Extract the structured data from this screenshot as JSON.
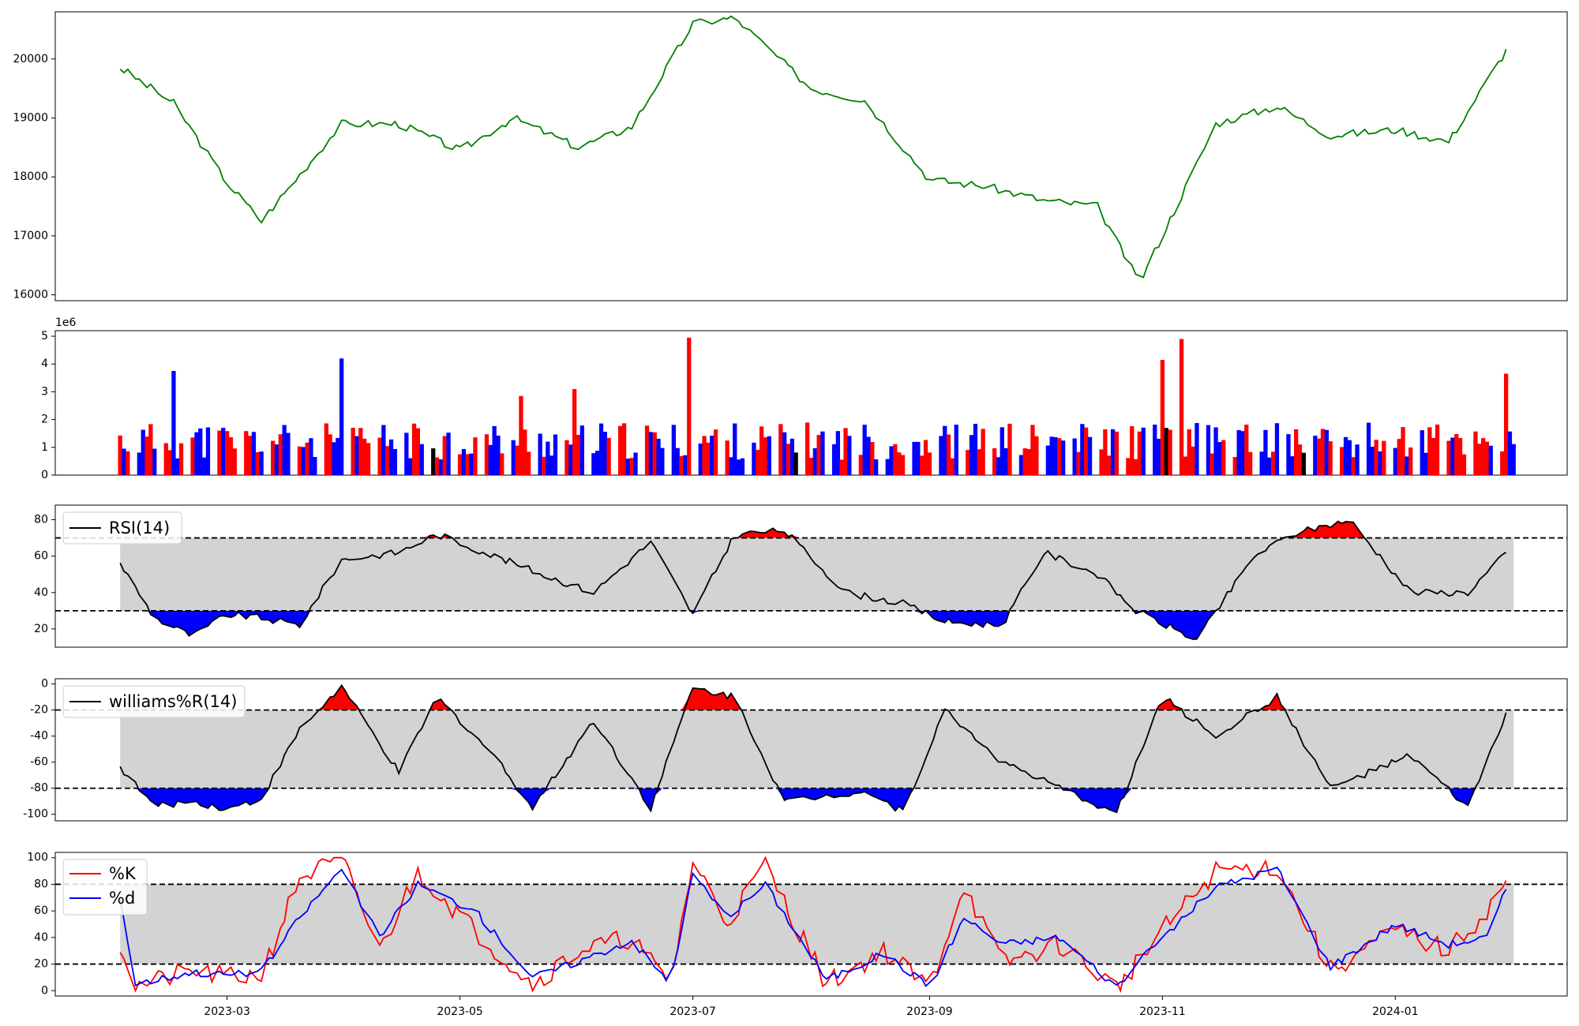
{
  "chart_data": [
    {
      "type": "line",
      "panel": "price",
      "color": "#008000",
      "ylim": [
        15900,
        20800
      ],
      "yticks": [
        16000,
        17000,
        18000,
        19000,
        20000
      ],
      "x": [
        "2023-02-01",
        "2023-02-15",
        "2023-03-01",
        "2023-03-10",
        "2023-03-31",
        "2023-04-15",
        "2023-05-01",
        "2023-05-15",
        "2023-06-01",
        "2023-06-15",
        "2023-07-01",
        "2023-07-12",
        "2023-08-01",
        "2023-08-15",
        "2023-09-01",
        "2023-09-15",
        "2023-10-01",
        "2023-10-15",
        "2023-10-26",
        "2023-11-15",
        "2023-12-01",
        "2023-12-15",
        "2024-01-01",
        "2024-01-15",
        "2024-02-01"
      ],
      "values": [
        19850,
        19250,
        17900,
        17250,
        18900,
        18900,
        18450,
        19000,
        18500,
        18850,
        20600,
        20700,
        19500,
        19300,
        17950,
        17850,
        17600,
        17500,
        16200,
        18900,
        19200,
        18700,
        18800,
        18600,
        20350
      ]
    },
    {
      "type": "bar",
      "panel": "volume",
      "scale_label": "1e6",
      "ylim": [
        0,
        5.2
      ],
      "yticks": [
        0,
        1,
        2,
        3,
        4,
        5
      ],
      "colors": {
        "up": "#ff0000",
        "down": "#0000ff",
        "flat": "#000000"
      },
      "peaks": [
        {
          "date": "2023-02-15",
          "value": 3.75,
          "color": "down"
        },
        {
          "date": "2023-03-31",
          "value": 4.2,
          "color": "down"
        },
        {
          "date": "2023-05-17",
          "value": 2.85,
          "color": "up"
        },
        {
          "date": "2023-05-31",
          "value": 3.1,
          "color": "up"
        },
        {
          "date": "2023-06-30",
          "value": 4.95,
          "color": "up"
        },
        {
          "date": "2023-11-01",
          "value": 4.15,
          "color": "up"
        },
        {
          "date": "2023-11-06",
          "value": 4.9,
          "color": "up"
        },
        {
          "date": "2024-01-30",
          "value": 3.65,
          "color": "up"
        }
      ]
    },
    {
      "type": "line",
      "panel": "rsi",
      "legend": "RSI(14)",
      "ylim": [
        10,
        88
      ],
      "yticks": [
        20,
        40,
        60,
        80
      ],
      "overbought": 70,
      "oversold": 30,
      "colors": {
        "line": "#000000",
        "band": "#d3d3d3",
        "high": "#ff0000",
        "low": "#0000ff"
      },
      "x": [
        "2023-02-01",
        "2023-02-10",
        "2023-02-20",
        "2023-03-01",
        "2023-03-10",
        "2023-03-20",
        "2023-03-31",
        "2023-04-15",
        "2023-04-25",
        "2023-05-10",
        "2023-05-25",
        "2023-06-05",
        "2023-06-20",
        "2023-07-01",
        "2023-07-12",
        "2023-07-25",
        "2023-08-10",
        "2023-08-25",
        "2023-09-05",
        "2023-09-20",
        "2023-10-01",
        "2023-10-15",
        "2023-10-25",
        "2023-11-10",
        "2023-11-25",
        "2023-12-05",
        "2023-12-20",
        "2024-01-05",
        "2024-01-20",
        "2024-02-01"
      ],
      "values": [
        56,
        26,
        16,
        28,
        26,
        22,
        58,
        62,
        72,
        60,
        48,
        40,
        68,
        28,
        72,
        74,
        40,
        34,
        24,
        22,
        62,
        50,
        30,
        14,
        60,
        72,
        80,
        40,
        40,
        66
      ]
    },
    {
      "type": "line",
      "panel": "williams",
      "legend": "williams%R(14)",
      "ylim": [
        -105,
        4
      ],
      "yticks": [
        0,
        -20,
        -40,
        -60,
        -80,
        -100
      ],
      "overbought": -20,
      "oversold": -80,
      "colors": {
        "line": "#000000",
        "band": "#d3d3d3",
        "high": "#ff0000",
        "low": "#0000ff"
      },
      "x": [
        "2023-02-01",
        "2023-02-10",
        "2023-02-20",
        "2023-03-01",
        "2023-03-10",
        "2023-03-20",
        "2023-03-31",
        "2023-04-15",
        "2023-04-25",
        "2023-05-10",
        "2023-05-20",
        "2023-06-05",
        "2023-06-20",
        "2023-07-01",
        "2023-07-12",
        "2023-07-25",
        "2023-08-15",
        "2023-08-25",
        "2023-09-05",
        "2023-09-20",
        "2023-10-05",
        "2023-10-20",
        "2023-11-01",
        "2023-11-15",
        "2023-12-01",
        "2023-12-15",
        "2024-01-05",
        "2024-01-20",
        "2024-02-01"
      ],
      "values": [
        -64,
        -94,
        -90,
        -96,
        -88,
        -35,
        -2,
        -68,
        -10,
        -55,
        -95,
        -28,
        -95,
        -3,
        -10,
        -90,
        -82,
        -98,
        -20,
        -60,
        -80,
        -99,
        -10,
        -40,
        -10,
        -80,
        -55,
        -95,
        -8
      ]
    },
    {
      "type": "line",
      "panel": "stochastic",
      "ylim": [
        -4,
        104
      ],
      "yticks": [
        0,
        20,
        40,
        60,
        80,
        100
      ],
      "upper": 80,
      "lower": 20,
      "band_color": "#d3d3d3",
      "x_ticks": [
        "2023-03",
        "2023-05",
        "2023-07",
        "2023-09",
        "2023-11",
        "2024-01"
      ],
      "series": [
        {
          "name": "%K",
          "color": "#ff0000",
          "x": [
            "2023-02-01",
            "2023-02-05",
            "2023-02-20",
            "2023-03-01",
            "2023-03-10",
            "2023-03-20",
            "2023-03-31",
            "2023-04-10",
            "2023-04-20",
            "2023-05-05",
            "2023-05-20",
            "2023-06-01",
            "2023-06-15",
            "2023-06-25",
            "2023-07-01",
            "2023-07-10",
            "2023-07-20",
            "2023-08-05",
            "2023-08-20",
            "2023-09-01",
            "2023-09-10",
            "2023-09-20",
            "2023-10-05",
            "2023-10-20",
            "2023-11-01",
            "2023-11-15",
            "2023-12-01",
            "2023-12-15",
            "2024-01-01",
            "2024-01-15",
            "2024-01-25",
            "2024-02-01"
          ],
          "values": [
            36,
            3,
            15,
            10,
            12,
            85,
            99,
            30,
            90,
            45,
            5,
            30,
            40,
            3,
            97,
            52,
            95,
            5,
            30,
            2,
            80,
            20,
            35,
            2,
            45,
            90,
            93,
            15,
            45,
            30,
            60,
            92
          ]
        },
        {
          "name": "%d",
          "color": "#0000ff",
          "x": [
            "2023-02-01",
            "2023-02-05",
            "2023-02-20",
            "2023-03-01",
            "2023-03-10",
            "2023-03-20",
            "2023-03-31",
            "2023-04-10",
            "2023-04-20",
            "2023-05-05",
            "2023-05-20",
            "2023-06-01",
            "2023-06-15",
            "2023-06-25",
            "2023-07-01",
            "2023-07-10",
            "2023-07-20",
            "2023-08-05",
            "2023-08-20",
            "2023-09-01",
            "2023-09-10",
            "2023-09-20",
            "2023-10-05",
            "2023-10-20",
            "2023-11-01",
            "2023-11-15",
            "2023-12-01",
            "2023-12-15",
            "2024-01-01",
            "2024-01-15",
            "2024-01-25",
            "2024-02-01"
          ],
          "values": [
            70,
            5,
            14,
            12,
            14,
            55,
            92,
            40,
            80,
            60,
            10,
            22,
            38,
            5,
            88,
            55,
            80,
            8,
            28,
            3,
            55,
            35,
            40,
            3,
            40,
            78,
            92,
            18,
            50,
            35,
            40,
            91
          ]
        }
      ]
    }
  ]
}
